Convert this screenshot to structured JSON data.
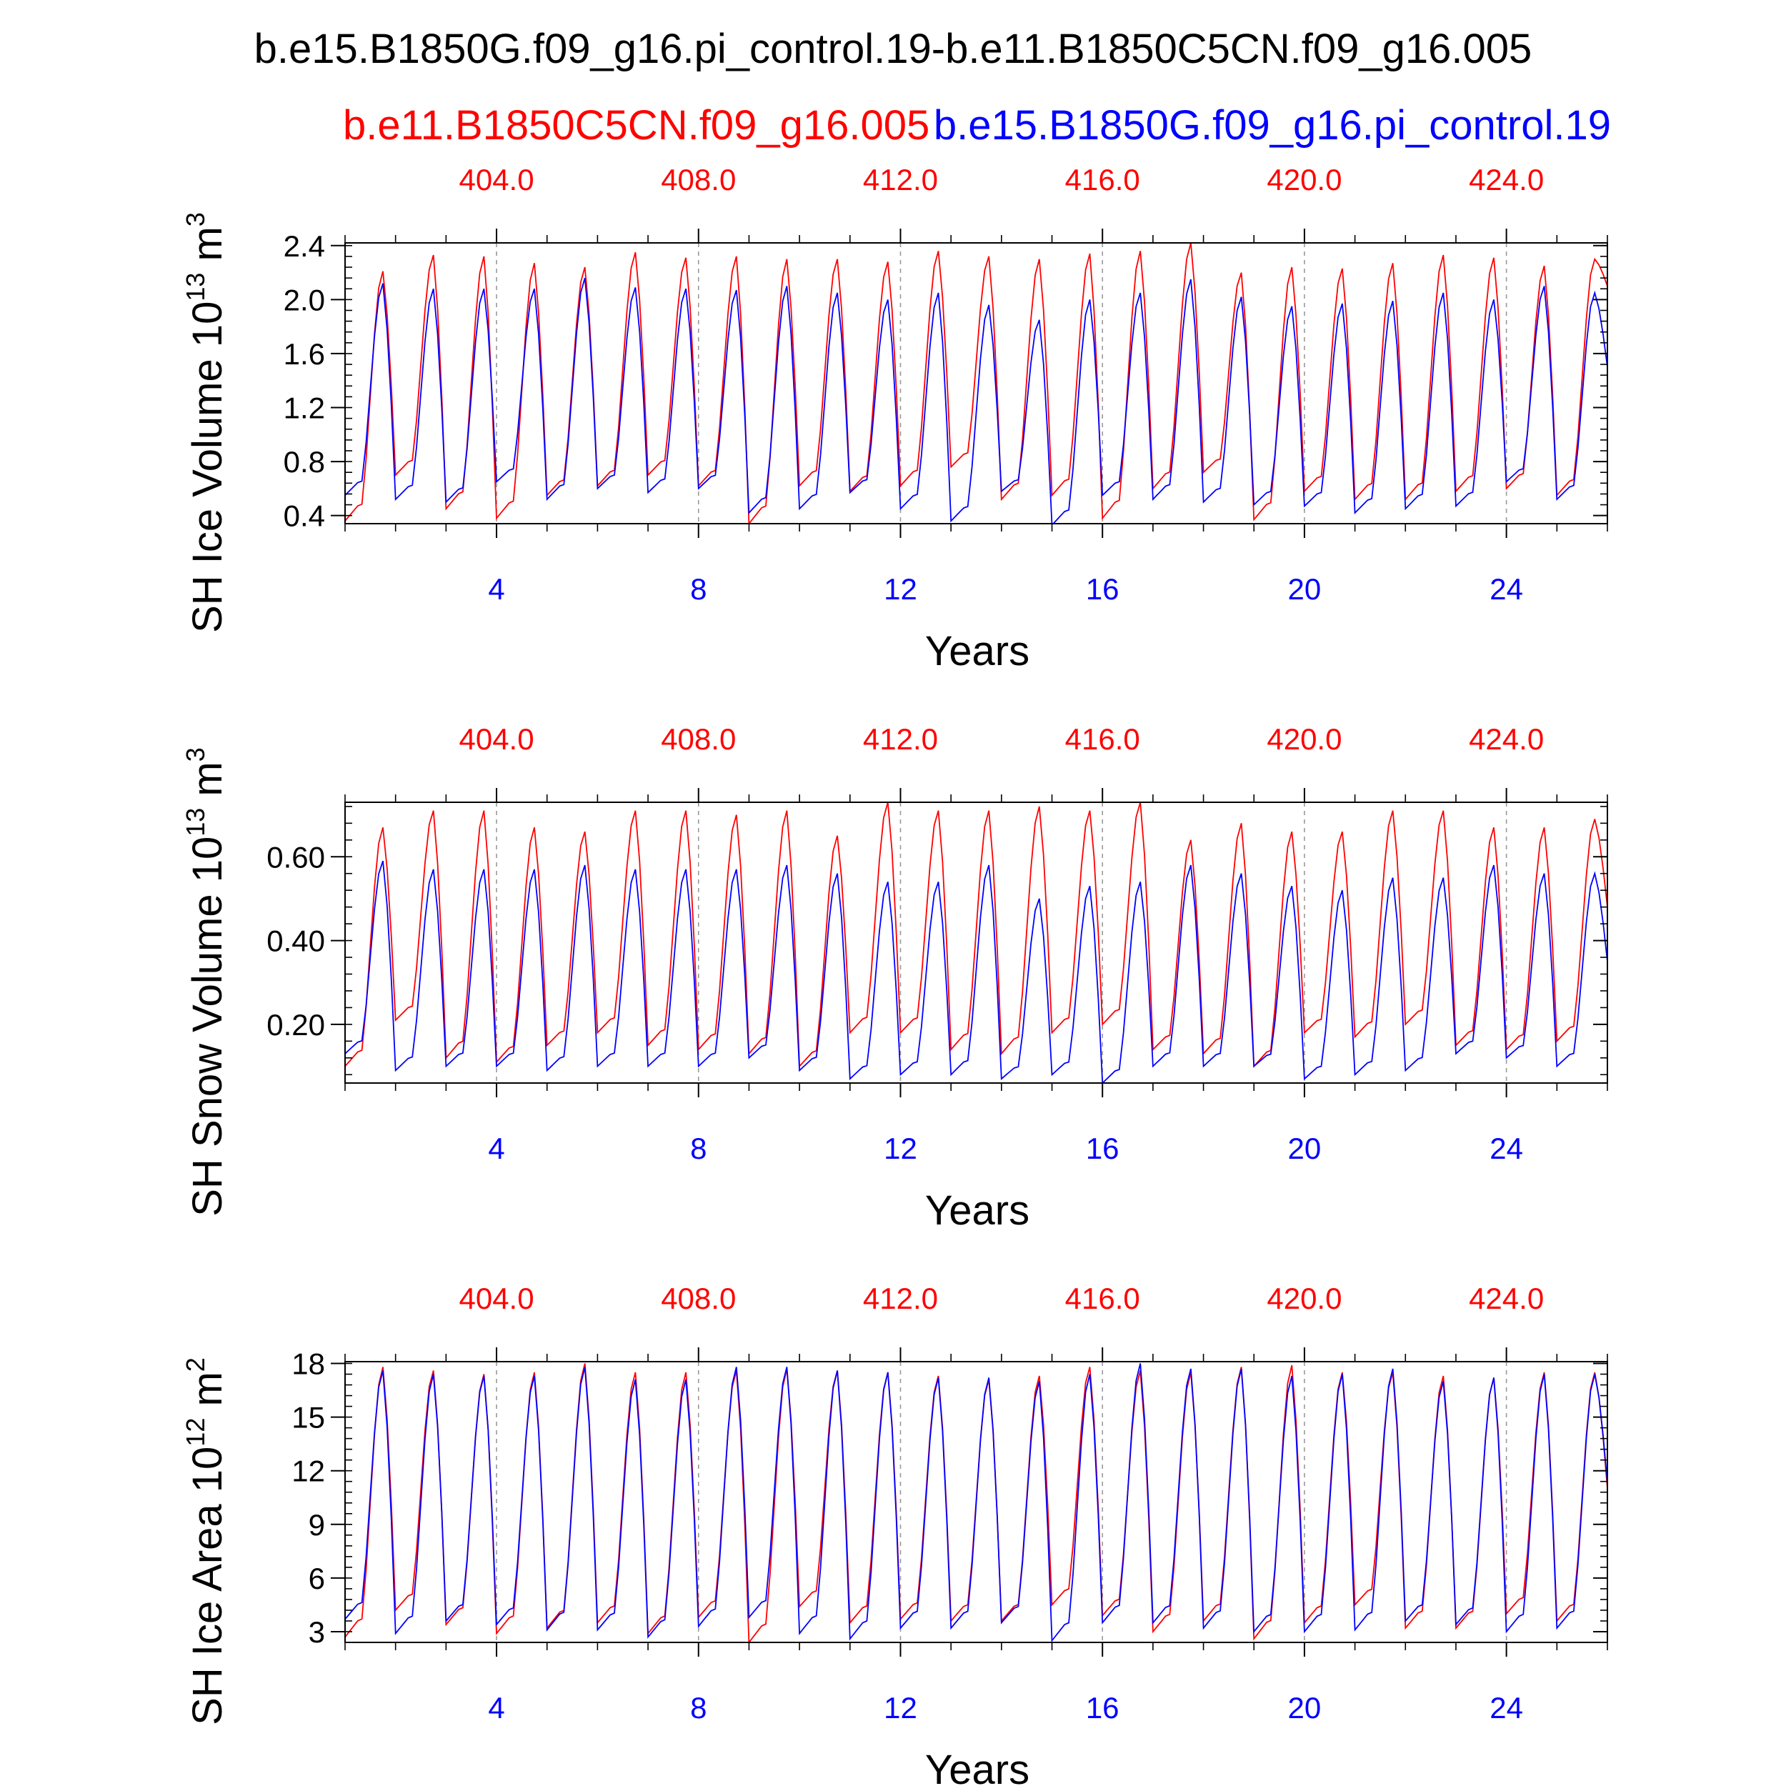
{
  "figure": {
    "title": "b.e15.B1850G.f09_g16.pi_control.19-b.e11.B1850C5CN.f09_g16.005",
    "legend_red": "b.e11.B1850C5CN.f09_g16.005",
    "legend_blue": "b.e15.B1850G.f09_g16.pi_control.19",
    "colors": {
      "red": "#ff0000",
      "blue": "#0000ff",
      "axis": "#000000",
      "refline": "#999999"
    }
  },
  "chart_data": [
    {
      "type": "line",
      "ylabel": "SH Ice Volume 10",
      "ylabel_exp": "13",
      "ylabel_unit": " m",
      "ylabel_unit_exp": "3",
      "xlabel": "Years",
      "xlim": [
        1,
        26
      ],
      "ylim": [
        0.34,
        2.42
      ],
      "yticks": [
        0.4,
        0.8,
        1.2,
        1.6,
        2.0,
        2.4
      ],
      "ytick_labels": [
        "0.4",
        "0.8",
        "1.2",
        "1.6",
        "2.0",
        "2.4"
      ],
      "xticks_bottom": [
        4,
        8,
        12,
        16,
        20,
        24
      ],
      "xtick_labels_bottom": [
        "4",
        "8",
        "12",
        "16",
        "20",
        "24"
      ],
      "xticks_top": [
        4,
        8,
        12,
        16,
        20,
        24
      ],
      "xtick_labels_top": [
        "404.0",
        "408.0",
        "412.0",
        "416.0",
        "420.0",
        "424.0"
      ],
      "series": [
        {
          "name": "b.e11.B1850C5CN.f09_g16.005",
          "color": "red",
          "peaks": [
            2.21,
            2.33,
            2.32,
            2.27,
            2.24,
            2.35,
            2.31,
            2.32,
            2.3,
            2.3,
            2.28,
            2.36,
            2.32,
            2.3,
            2.34,
            2.36,
            2.42,
            2.2,
            2.24,
            2.23,
            2.27,
            2.33,
            2.31,
            2.25,
            2.3
          ],
          "troughs": [
            0.36,
            0.7,
            0.45,
            0.38,
            0.55,
            0.62,
            0.7,
            0.62,
            0.34,
            0.62,
            0.58,
            0.62,
            0.76,
            0.52,
            0.55,
            0.38,
            0.6,
            0.72,
            0.37,
            0.58,
            0.52,
            0.52,
            0.58,
            0.6,
            0.55
          ],
          "end": 2.1
        },
        {
          "name": "b.e15.B1850G.f09_g16.pi_control.19",
          "color": "blue",
          "peaks": [
            2.12,
            2.08,
            2.08,
            2.08,
            2.16,
            2.09,
            2.08,
            2.07,
            2.1,
            2.05,
            2.0,
            2.05,
            1.96,
            1.85,
            2.0,
            2.05,
            2.15,
            2.02,
            1.95,
            1.97,
            1.99,
            2.05,
            2.0,
            2.1,
            2.05
          ],
          "troughs": [
            0.55,
            0.52,
            0.5,
            0.65,
            0.52,
            0.6,
            0.57,
            0.6,
            0.42,
            0.45,
            0.57,
            0.45,
            0.36,
            0.58,
            0.33,
            0.55,
            0.52,
            0.5,
            0.48,
            0.47,
            0.42,
            0.45,
            0.47,
            0.65,
            0.52
          ],
          "end": 1.5
        }
      ]
    },
    {
      "type": "line",
      "ylabel": "SH Snow Volume 10",
      "ylabel_exp": "13",
      "ylabel_unit": " m",
      "ylabel_unit_exp": "3",
      "xlabel": "Years",
      "xlim": [
        1,
        26
      ],
      "ylim": [
        0.06,
        0.73
      ],
      "yticks": [
        0.2,
        0.4,
        0.6
      ],
      "ytick_labels": [
        "0.20",
        "0.40",
        "0.60"
      ],
      "xticks_bottom": [
        4,
        8,
        12,
        16,
        20,
        24
      ],
      "xtick_labels_bottom": [
        "4",
        "8",
        "12",
        "16",
        "20",
        "24"
      ],
      "xticks_top": [
        4,
        8,
        12,
        16,
        20,
        24
      ],
      "xtick_labels_top": [
        "404.0",
        "408.0",
        "412.0",
        "416.0",
        "420.0",
        "424.0"
      ],
      "series": [
        {
          "name": "b.e11.B1850C5CN.f09_g16.005",
          "color": "red",
          "peaks": [
            0.67,
            0.71,
            0.71,
            0.67,
            0.66,
            0.71,
            0.71,
            0.7,
            0.71,
            0.65,
            0.73,
            0.71,
            0.71,
            0.72,
            0.71,
            0.73,
            0.64,
            0.68,
            0.66,
            0.66,
            0.71,
            0.71,
            0.67,
            0.67,
            0.69
          ],
          "troughs": [
            0.1,
            0.21,
            0.12,
            0.11,
            0.15,
            0.18,
            0.15,
            0.14,
            0.13,
            0.1,
            0.18,
            0.18,
            0.14,
            0.13,
            0.18,
            0.2,
            0.14,
            0.13,
            0.1,
            0.18,
            0.17,
            0.2,
            0.15,
            0.14,
            0.16
          ],
          "end": 0.48
        },
        {
          "name": "b.e15.B1850G.f09_g16.pi_control.19",
          "color": "blue",
          "peaks": [
            0.59,
            0.57,
            0.57,
            0.57,
            0.58,
            0.57,
            0.57,
            0.57,
            0.58,
            0.56,
            0.54,
            0.54,
            0.58,
            0.5,
            0.53,
            0.54,
            0.58,
            0.56,
            0.53,
            0.52,
            0.55,
            0.55,
            0.58,
            0.56,
            0.56
          ],
          "troughs": [
            0.13,
            0.09,
            0.1,
            0.1,
            0.09,
            0.1,
            0.1,
            0.1,
            0.12,
            0.09,
            0.07,
            0.08,
            0.08,
            0.07,
            0.08,
            0.06,
            0.1,
            0.1,
            0.1,
            0.07,
            0.08,
            0.09,
            0.13,
            0.12,
            0.1
          ],
          "end": 0.35
        }
      ]
    },
    {
      "type": "line",
      "ylabel": "SH Ice Area 10",
      "ylabel_exp": "12",
      "ylabel_unit": " m",
      "ylabel_unit_exp": "2",
      "xlabel": "Years",
      "xlim": [
        1,
        26
      ],
      "ylim": [
        2.4,
        18.1
      ],
      "yticks": [
        3,
        6,
        9,
        12,
        15,
        18
      ],
      "ytick_labels": [
        "3",
        "6",
        "9",
        "12",
        "15",
        "18"
      ],
      "xticks_bottom": [
        4,
        8,
        12,
        16,
        20,
        24
      ],
      "xtick_labels_bottom": [
        "4",
        "8",
        "12",
        "16",
        "20",
        "24"
      ],
      "xticks_top": [
        4,
        8,
        12,
        16,
        20,
        24
      ],
      "xtick_labels_top": [
        "404.0",
        "408.0",
        "412.0",
        "416.0",
        "420.0",
        "424.0"
      ],
      "series": [
        {
          "name": "b.e11.B1850C5CN.f09_g16.005",
          "color": "red",
          "peaks": [
            17.8,
            17.6,
            17.4,
            17.5,
            18.0,
            17.5,
            17.5,
            17.6,
            17.7,
            17.6,
            17.5,
            17.3,
            17.1,
            17.3,
            17.8,
            17.6,
            17.5,
            17.8,
            17.9,
            17.5,
            17.5,
            17.3,
            17.2,
            17.5,
            17.5
          ],
          "troughs": [
            2.7,
            4.2,
            3.4,
            2.9,
            3.2,
            3.5,
            2.9,
            3.8,
            2.4,
            4.4,
            3.5,
            3.7,
            3.6,
            3.6,
            4.5,
            3.9,
            3.0,
            3.6,
            2.6,
            3.5,
            4.5,
            3.2,
            3.2,
            4.0,
            3.6
          ],
          "end": 11.0
        },
        {
          "name": "b.e15.B1850G.f09_g16.pi_control.19",
          "color": "blue",
          "peaks": [
            17.6,
            17.4,
            17.3,
            17.3,
            17.8,
            17.1,
            17.1,
            17.8,
            17.8,
            17.6,
            17.5,
            17.2,
            17.2,
            17.0,
            17.4,
            18.0,
            17.7,
            17.7,
            17.3,
            17.4,
            17.7,
            17.0,
            17.2,
            17.4,
            17.4
          ],
          "troughs": [
            3.7,
            2.9,
            3.6,
            3.4,
            3.1,
            3.1,
            2.7,
            3.3,
            3.8,
            2.9,
            2.6,
            3.2,
            3.2,
            3.5,
            2.5,
            3.5,
            3.5,
            3.2,
            3.0,
            3.0,
            3.1,
            3.6,
            3.4,
            3.0,
            3.2
          ],
          "end": 11.3
        }
      ]
    }
  ]
}
